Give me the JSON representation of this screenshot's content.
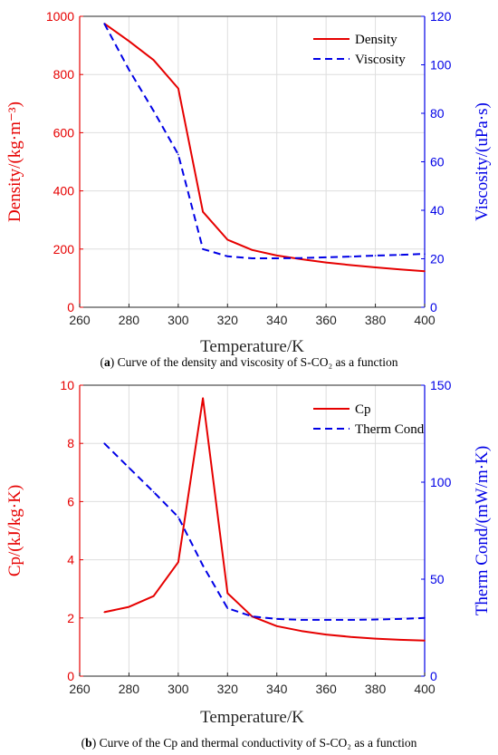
{
  "colors": {
    "left_axis": "#e60000",
    "right_axis": "#0000e6",
    "grid": "#dedede"
  },
  "captions": [
    {
      "tag": "a",
      "text": "Curve of the density and viscosity of S-CO₂ as a function"
    },
    {
      "tag": "b",
      "text": "Curve of the Cp and thermal conductivity of S-CO₂ as a function"
    }
  ],
  "chart_data": [
    {
      "type": "line",
      "xlabel": "Temperature/K",
      "ylabel_left": "Density/(kg·m⁻³)",
      "ylabel_right": "Viscosity/(uPa·s)",
      "xlim": [
        260,
        400
      ],
      "xticks": [
        260,
        280,
        300,
        320,
        340,
        360,
        380,
        400
      ],
      "ylim_left": [
        0,
        1000
      ],
      "yticks_left": [
        0,
        200,
        400,
        600,
        800,
        1000
      ],
      "ylim_right": [
        0,
        120
      ],
      "yticks_right": [
        0,
        20,
        40,
        60,
        80,
        100,
        120
      ],
      "grid": true,
      "legend_position": "top-right",
      "series": [
        {
          "name": "Density",
          "axis": "left",
          "style": "solid",
          "color": "#e60000",
          "x": [
            270,
            280,
            290,
            300,
            310,
            320,
            330,
            340,
            350,
            360,
            370,
            380,
            390,
            400
          ],
          "y": [
            975,
            915,
            850,
            752,
            328,
            232,
            197,
            178,
            165,
            154,
            145,
            137,
            130,
            124
          ]
        },
        {
          "name": "Viscosity",
          "axis": "right",
          "style": "dashed",
          "color": "#0000e6",
          "x": [
            270,
            280,
            290,
            300,
            310,
            320,
            330,
            340,
            350,
            360,
            370,
            380,
            390,
            400
          ],
          "y": [
            117,
            98,
            81,
            63,
            24,
            21,
            20.2,
            20.2,
            20.3,
            20.6,
            20.9,
            21.3,
            21.6,
            22
          ]
        }
      ]
    },
    {
      "type": "line",
      "xlabel": "Temperature/K",
      "ylabel_left": "Cp/(kJ/kg·K)",
      "ylabel_right": "Therm Cond/(mW/m·K)",
      "xlim": [
        260,
        400
      ],
      "xticks": [
        260,
        280,
        300,
        320,
        340,
        360,
        380,
        400
      ],
      "ylim_left": [
        0,
        10
      ],
      "yticks_left": [
        0,
        2,
        4,
        6,
        8,
        10
      ],
      "ylim_right": [
        0,
        150
      ],
      "yticks_right": [
        0,
        50,
        100,
        150
      ],
      "grid": true,
      "legend_position": "top-right",
      "series": [
        {
          "name": "Cp",
          "axis": "left",
          "style": "solid",
          "color": "#e60000",
          "x": [
            270,
            280,
            290,
            300,
            310,
            320,
            330,
            340,
            350,
            360,
            370,
            380,
            390,
            400
          ],
          "y": [
            2.2,
            2.38,
            2.75,
            3.92,
            9.55,
            2.85,
            2.05,
            1.72,
            1.55,
            1.43,
            1.35,
            1.29,
            1.25,
            1.22
          ]
        },
        {
          "name": "Therm Cond",
          "axis": "right",
          "style": "dashed",
          "color": "#0000e6",
          "x": [
            270,
            280,
            290,
            300,
            310,
            320,
            330,
            340,
            350,
            360,
            370,
            380,
            390,
            400
          ],
          "y": [
            120,
            107.5,
            95,
            82,
            57,
            35,
            30.8,
            29.5,
            29,
            29,
            29,
            29.2,
            29.5,
            30
          ]
        }
      ]
    }
  ]
}
